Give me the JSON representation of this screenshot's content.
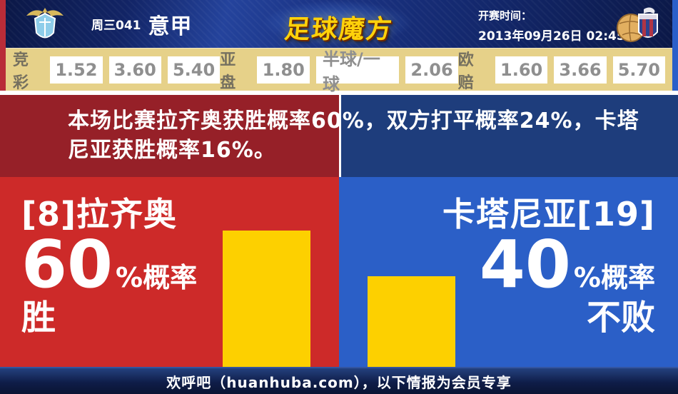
{
  "header": {
    "match_code": "周三041",
    "league": "意甲",
    "brand": "足球魔方",
    "kickoff_label": "开赛时间：",
    "kickoff_time": "2013年09月26日 02:45",
    "home_crest": "lazio-eagle-crest",
    "away_crest": "catania-elephant-crest"
  },
  "odds": {
    "jingcai": {
      "label": "竞彩",
      "values": [
        "1.52",
        "3.60",
        "5.40"
      ]
    },
    "yapan": {
      "label": "亚盘",
      "values": [
        "1.80",
        "半球/一球",
        "2.06"
      ]
    },
    "oupei": {
      "label": "欧赔",
      "values": [
        "1.60",
        "3.66",
        "5.70"
      ]
    }
  },
  "analysis": {
    "text": "本场比赛拉齐奥获胜概率60%，双方打平概率24%，卡塔\n尼亚获胜概率16%。"
  },
  "home": {
    "name": "[8]拉齐奥",
    "probability": "60",
    "percent_suffix": "%概率",
    "outcome": "胜",
    "bar_percent": 60
  },
  "away": {
    "name": "卡塔尼亚[19]",
    "probability": "40",
    "percent_suffix": "%概率",
    "outcome": "不败",
    "bar_percent": 40
  },
  "footer": {
    "text": "欢呼吧（huanhuba.com），以下情报为会员专享"
  },
  "colors": {
    "accent_red": "#cd2a29",
    "accent_blue": "#2b5fc7",
    "dark_red": "#962028",
    "dark_blue": "#1e3d7c",
    "bar_yellow": "#fdd000",
    "odds_panel_beige": "#e6d189",
    "header_navy": "#14296f",
    "brand_gold": "#ffd20a"
  },
  "chart_data": {
    "type": "bar",
    "categories": [
      "[8]拉齐奥 胜",
      "卡塔尼亚[19] 不败"
    ],
    "values": [
      60,
      40
    ],
    "unit": "%",
    "ylim": [
      0,
      100
    ],
    "probabilities": {
      "home_win": 60,
      "draw": 24,
      "away_win": 16
    }
  }
}
